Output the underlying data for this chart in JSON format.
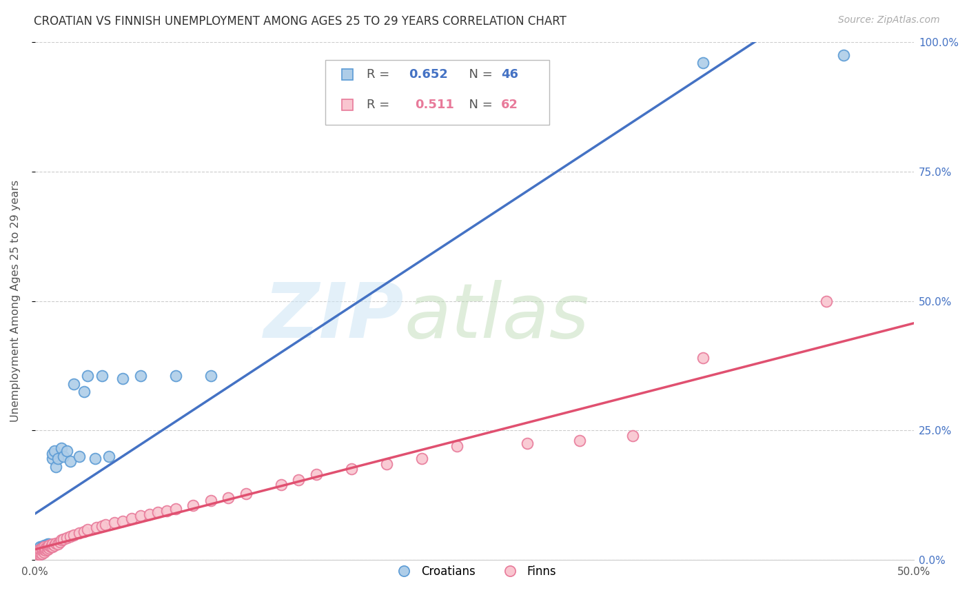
{
  "title": "CROATIAN VS FINNISH UNEMPLOYMENT AMONG AGES 25 TO 29 YEARS CORRELATION CHART",
  "source": "Source: ZipAtlas.com",
  "ylabel": "Unemployment Among Ages 25 to 29 years",
  "xlim": [
    0.0,
    0.5
  ],
  "ylim": [
    0.0,
    1.0
  ],
  "xticks": [
    0.0,
    0.1,
    0.2,
    0.3,
    0.4,
    0.5
  ],
  "xtick_labels": [
    "0.0%",
    "",
    "",
    "",
    "",
    "50.0%"
  ],
  "ytick_labels_right": [
    "0.0%",
    "25.0%",
    "50.0%",
    "75.0%",
    "100.0%"
  ],
  "yticks": [
    0.0,
    0.25,
    0.5,
    0.75,
    1.0
  ],
  "legend_R_croatian": "0.652",
  "legend_N_croatian": "46",
  "legend_R_finnish": "0.511",
  "legend_N_finnish": "62",
  "blue_fill": "#aecde8",
  "blue_edge": "#5b9bd5",
  "pink_fill": "#f9c6d0",
  "pink_edge": "#e87a9a",
  "blue_line": "#4472c4",
  "pink_line": "#e05070",
  "background_color": "#ffffff",
  "croatian_x": [
    0.001,
    0.001,
    0.001,
    0.002,
    0.002,
    0.002,
    0.002,
    0.003,
    0.003,
    0.003,
    0.003,
    0.004,
    0.004,
    0.004,
    0.005,
    0.005,
    0.005,
    0.006,
    0.006,
    0.007,
    0.007,
    0.008,
    0.008,
    0.009,
    0.01,
    0.01,
    0.011,
    0.012,
    0.013,
    0.015,
    0.016,
    0.018,
    0.02,
    0.022,
    0.025,
    0.028,
    0.03,
    0.034,
    0.038,
    0.042,
    0.05,
    0.06,
    0.08,
    0.1,
    0.38,
    0.46
  ],
  "croatian_y": [
    0.01,
    0.012,
    0.015,
    0.01,
    0.015,
    0.018,
    0.02,
    0.01,
    0.018,
    0.022,
    0.025,
    0.015,
    0.02,
    0.025,
    0.018,
    0.022,
    0.028,
    0.02,
    0.025,
    0.022,
    0.03,
    0.025,
    0.03,
    0.025,
    0.195,
    0.205,
    0.21,
    0.18,
    0.195,
    0.215,
    0.2,
    0.21,
    0.19,
    0.34,
    0.2,
    0.325,
    0.355,
    0.195,
    0.355,
    0.2,
    0.35,
    0.355,
    0.355,
    0.355,
    0.96,
    0.975
  ],
  "finnish_x": [
    0.001,
    0.001,
    0.002,
    0.002,
    0.002,
    0.003,
    0.003,
    0.003,
    0.004,
    0.004,
    0.004,
    0.005,
    0.005,
    0.005,
    0.006,
    0.006,
    0.007,
    0.007,
    0.008,
    0.008,
    0.009,
    0.01,
    0.01,
    0.011,
    0.012,
    0.013,
    0.014,
    0.015,
    0.016,
    0.018,
    0.02,
    0.022,
    0.025,
    0.028,
    0.03,
    0.035,
    0.038,
    0.04,
    0.045,
    0.05,
    0.055,
    0.06,
    0.065,
    0.07,
    0.075,
    0.08,
    0.09,
    0.1,
    0.11,
    0.12,
    0.14,
    0.15,
    0.16,
    0.18,
    0.2,
    0.22,
    0.24,
    0.28,
    0.31,
    0.34,
    0.38,
    0.45
  ],
  "finnish_y": [
    0.008,
    0.012,
    0.01,
    0.015,
    0.018,
    0.01,
    0.015,
    0.02,
    0.012,
    0.018,
    0.022,
    0.015,
    0.02,
    0.025,
    0.018,
    0.022,
    0.02,
    0.025,
    0.022,
    0.028,
    0.025,
    0.025,
    0.03,
    0.028,
    0.032,
    0.03,
    0.035,
    0.038,
    0.04,
    0.042,
    0.045,
    0.048,
    0.052,
    0.055,
    0.058,
    0.062,
    0.065,
    0.068,
    0.072,
    0.075,
    0.08,
    0.085,
    0.088,
    0.092,
    0.095,
    0.098,
    0.105,
    0.115,
    0.12,
    0.128,
    0.145,
    0.155,
    0.165,
    0.175,
    0.185,
    0.195,
    0.22,
    0.225,
    0.23,
    0.24,
    0.39,
    0.5
  ]
}
